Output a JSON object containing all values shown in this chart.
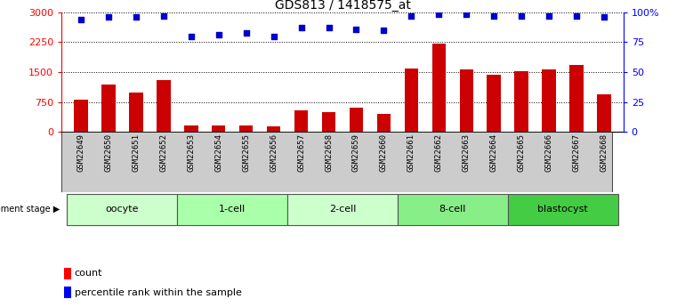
{
  "title": "GDS813 / 1418575_at",
  "samples": [
    "GSM22649",
    "GSM22650",
    "GSM22651",
    "GSM22652",
    "GSM22653",
    "GSM22654",
    "GSM22655",
    "GSM22656",
    "GSM22657",
    "GSM22658",
    "GSM22659",
    "GSM22660",
    "GSM22661",
    "GSM22662",
    "GSM22663",
    "GSM22664",
    "GSM22665",
    "GSM22666",
    "GSM22667",
    "GSM22668"
  ],
  "counts": [
    800,
    1200,
    1000,
    1300,
    170,
    175,
    175,
    145,
    550,
    490,
    610,
    450,
    1590,
    2210,
    1560,
    1440,
    1520,
    1570,
    1680,
    950
  ],
  "percentiles": [
    94,
    96,
    96,
    97,
    80,
    81,
    83,
    80,
    87,
    87,
    86,
    85,
    97,
    98,
    98,
    97,
    97,
    97,
    97,
    96
  ],
  "groups": [
    {
      "label": "oocyte",
      "start": 0,
      "end": 4,
      "color": "#ccffcc"
    },
    {
      "label": "1-cell",
      "start": 4,
      "end": 8,
      "color": "#aaffaa"
    },
    {
      "label": "2-cell",
      "start": 8,
      "end": 12,
      "color": "#ccffcc"
    },
    {
      "label": "8-cell",
      "start": 12,
      "end": 16,
      "color": "#88ee88"
    },
    {
      "label": "blastocyst",
      "start": 16,
      "end": 20,
      "color": "#44cc44"
    }
  ],
  "bar_color": "#cc0000",
  "dot_color": "#0000cc",
  "ylim_left": [
    0,
    3000
  ],
  "ylim_right": [
    0,
    100
  ],
  "yticks_left": [
    0,
    750,
    1500,
    2250,
    3000
  ],
  "yticks_right": [
    0,
    25,
    50,
    75,
    100
  ],
  "yticklabels_right": [
    "0",
    "25",
    "50",
    "75",
    "100%"
  ],
  "bar_width": 0.5,
  "dot_size": 22,
  "legend_count_label": "count",
  "legend_pct_label": "percentile rank within the sample",
  "dev_stage_label": "development stage",
  "tick_bg_color": "#cccccc",
  "spine_color": "#000000"
}
